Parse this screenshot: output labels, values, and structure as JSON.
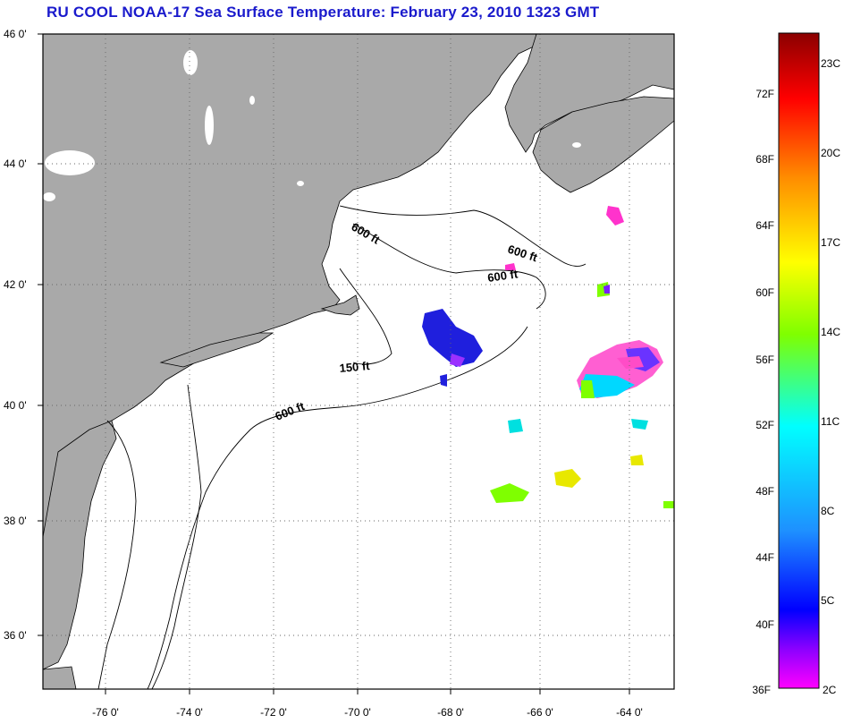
{
  "title": "RU COOL  NOAA-17  Sea Surface Temperature:  February 23, 2010 1323 GMT",
  "map": {
    "lat_labels": [
      "46 0'",
      "44 0'",
      "42 0'",
      "40 0'",
      "38 0'",
      "36 0'"
    ],
    "lon_labels": [
      "-76 0'",
      "-74 0'",
      "-72 0'",
      "-70 0'",
      "-68 0'",
      "-66 0'",
      "-64 0'"
    ],
    "contour_labels": [
      "600 ft",
      "600 ft",
      "600 ft",
      "150 ft",
      "600 ft"
    ],
    "colors": {
      "land": "#a9a9a9",
      "water": "#ffffff",
      "grid": "#555555"
    }
  },
  "colorbar": {
    "fahrenheit_labels": [
      "72F",
      "68F",
      "64F",
      "60F",
      "56F",
      "52F",
      "48F",
      "44F",
      "40F",
      "36F"
    ],
    "celsius_labels": [
      "23C",
      "20C",
      "17C",
      "14C",
      "11C",
      "8C",
      "5C",
      "2C"
    ],
    "gradient": [
      "#8b0000",
      "#ff0000",
      "#ff8c00",
      "#ffff00",
      "#7fff00",
      "#00ffff",
      "#1e90ff",
      "#0000ff",
      "#8b00ff",
      "#ff00ff"
    ]
  }
}
